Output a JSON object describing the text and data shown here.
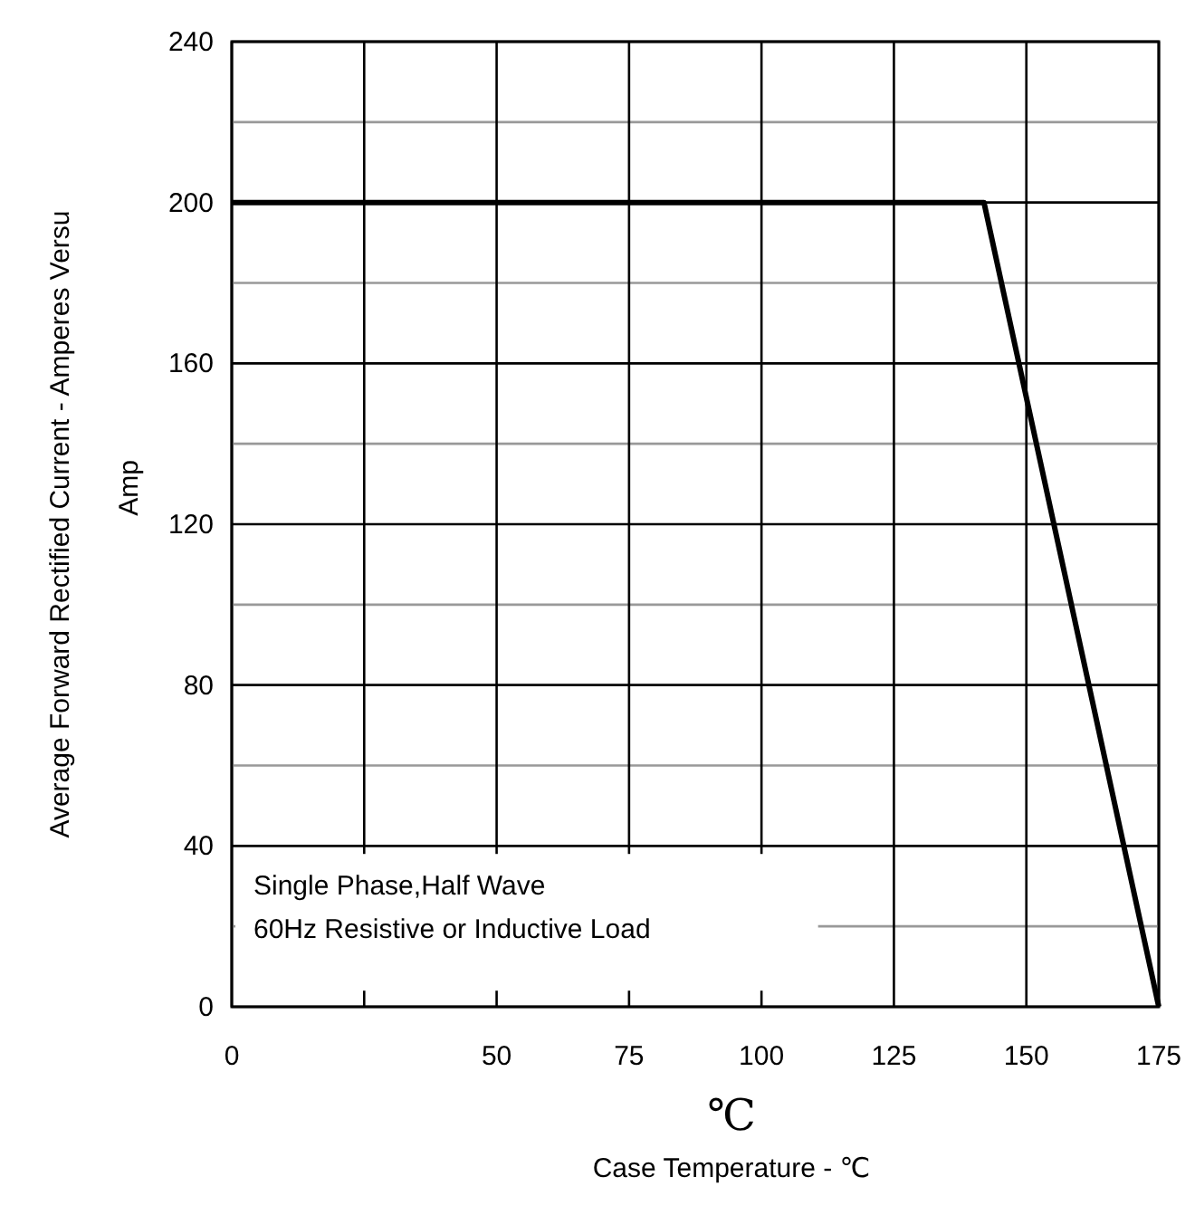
{
  "chart_data": {
    "type": "line",
    "ylabel": "Average Forward Rectified Current - Amperes Versu\nAmp",
    "xlabel": "Case Temperature  - ℃",
    "annotations": [
      "℃",
      "Single Phase,Half Wave\n60Hz Resistive or Inductive Load"
    ],
    "x": [
      0,
      142,
      175
    ],
    "series": [
      {
        "color": "#000000",
        "values": [
          200,
          200,
          0
        ]
      }
    ],
    "xlim": [
      0,
      175
    ],
    "xticks": [
      0,
      {
        "value": 25,
        "label": null
      },
      50,
      75,
      100,
      125,
      150,
      175
    ],
    "ylim": [
      0,
      240
    ],
    "yticks": [
      0,
      {
        "value": 20,
        "label": null
      },
      40,
      {
        "value": 60,
        "label": null
      },
      80,
      {
        "value": 100,
        "label": null
      },
      120,
      {
        "value": 140,
        "label": null
      },
      160,
      {
        "value": 180,
        "label": null
      },
      200,
      {
        "value": 220,
        "label": null
      },
      240
    ],
    "grid": true,
    "marker": "none",
    "line_style": "solid"
  }
}
